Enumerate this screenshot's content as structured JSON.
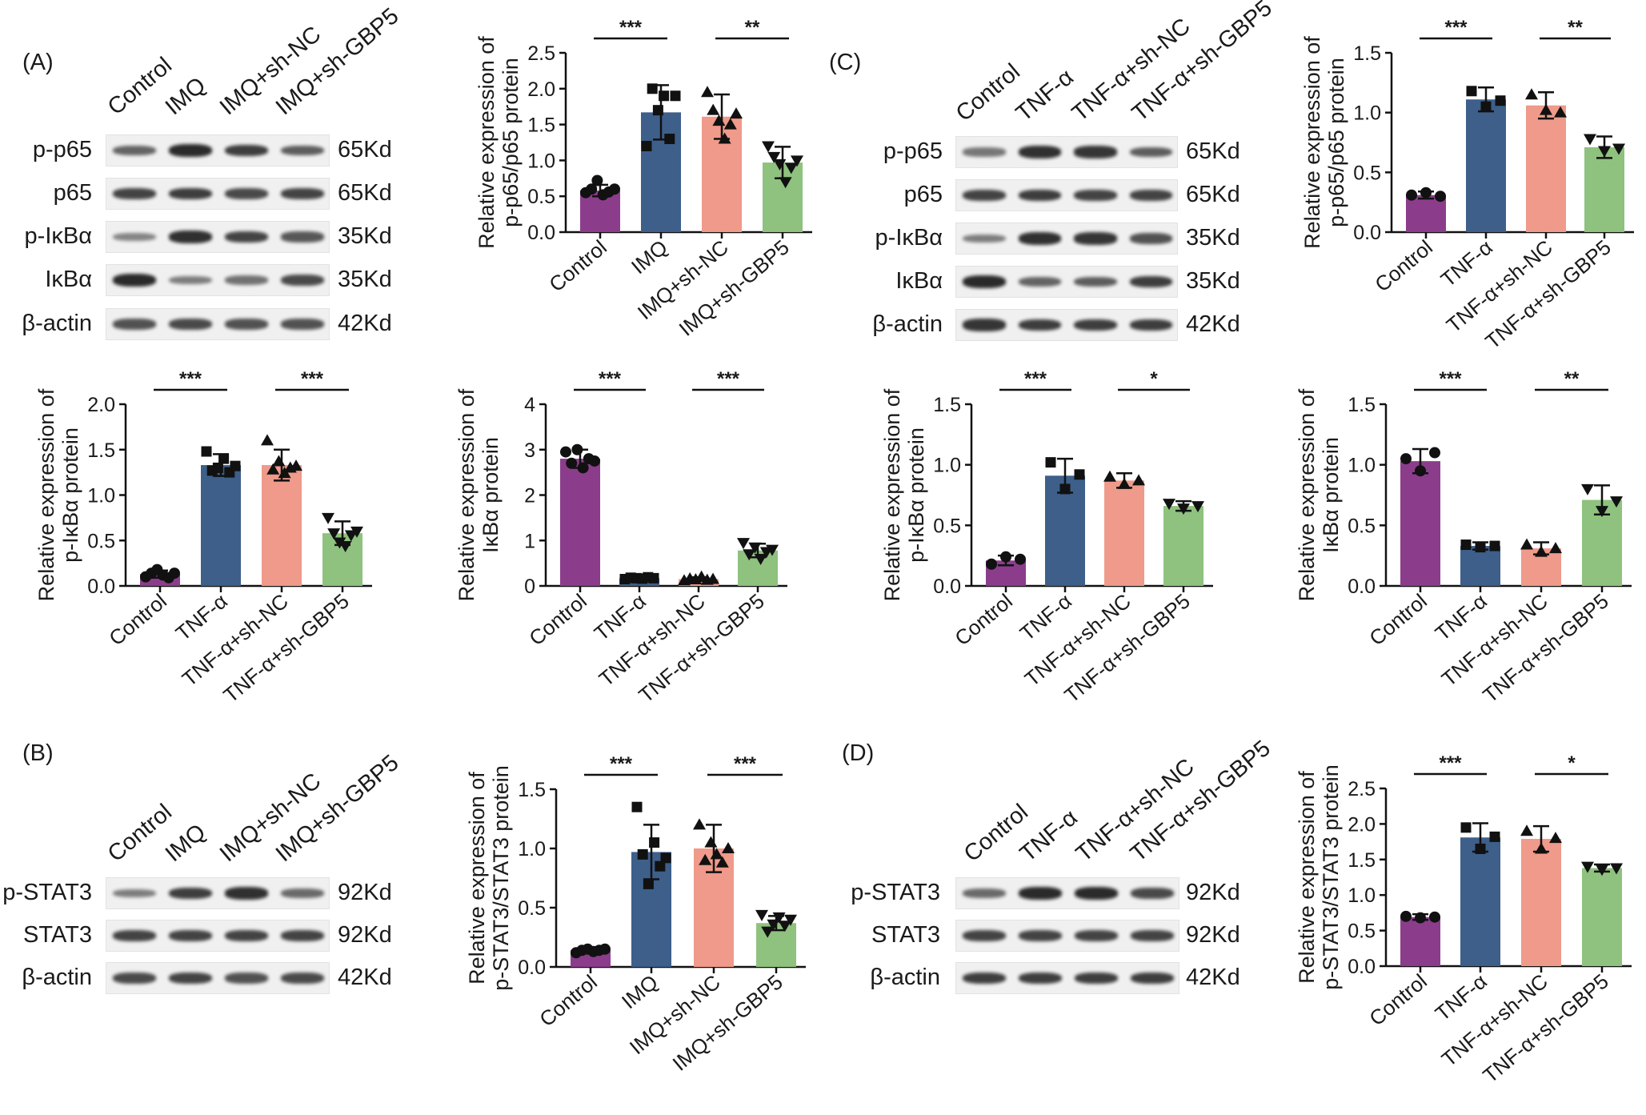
{
  "panel_labels": {
    "A": "(A)",
    "B": "(B)",
    "C": "(C)",
    "D": "(D)"
  },
  "colors": {
    "control": "#8b3d8b",
    "treat": "#3d5f8a",
    "shnc": "#ef9a8a",
    "shgbp5": "#8ec27e",
    "band": "#2a2a2a"
  },
  "blots": {
    "A": {
      "lanes": [
        "Control",
        "IMQ",
        "IMQ+sh-NC",
        "IMQ+sh-GBP5"
      ],
      "rows": [
        {
          "name": "p-p65",
          "kd": "65Kd",
          "intensity": [
            0.55,
            1.0,
            0.85,
            0.6
          ]
        },
        {
          "name": "p65",
          "kd": "65Kd",
          "intensity": [
            0.8,
            0.85,
            0.75,
            0.8
          ]
        },
        {
          "name": "p-IκBα",
          "kd": "35Kd",
          "intensity": [
            0.3,
            0.95,
            0.8,
            0.65
          ]
        },
        {
          "name": "IκBα",
          "kd": "35Kd",
          "intensity": [
            1.0,
            0.35,
            0.45,
            0.75
          ]
        },
        {
          "name": "β-actin",
          "kd": "42Kd",
          "intensity": [
            0.7,
            0.75,
            0.7,
            0.7
          ]
        }
      ]
    },
    "B": {
      "lanes": [
        "Control",
        "IMQ",
        "IMQ+sh-NC",
        "IMQ+sh-GBP5"
      ],
      "rows": [
        {
          "name": "p-STAT3",
          "kd": "92Kd",
          "intensity": [
            0.35,
            0.85,
            0.95,
            0.5
          ]
        },
        {
          "name": "STAT3",
          "kd": "92Kd",
          "intensity": [
            0.8,
            0.8,
            0.8,
            0.8
          ]
        },
        {
          "name": "β-actin",
          "kd": "42Kd",
          "intensity": [
            0.75,
            0.8,
            0.7,
            0.75
          ]
        }
      ]
    },
    "C": {
      "lanes": [
        "Control",
        "TNF-α",
        "TNF-α+sh-NC",
        "TNF-α+sh-GBP5"
      ],
      "rows": [
        {
          "name": "p-p65",
          "kd": "65Kd",
          "intensity": [
            0.4,
            0.95,
            0.9,
            0.6
          ]
        },
        {
          "name": "p65",
          "kd": "65Kd",
          "intensity": [
            0.8,
            0.85,
            0.8,
            0.8
          ]
        },
        {
          "name": "p-IκBα",
          "kd": "35Kd",
          "intensity": [
            0.35,
            0.95,
            0.9,
            0.7
          ]
        },
        {
          "name": "IκBα",
          "kd": "35Kd",
          "intensity": [
            1.0,
            0.55,
            0.6,
            0.85
          ]
        },
        {
          "name": "β-actin",
          "kd": "42Kd",
          "intensity": [
            0.9,
            0.85,
            0.85,
            0.85
          ]
        }
      ]
    },
    "D": {
      "lanes": [
        "Control",
        "TNF-α",
        "TNF-α+sh-NC",
        "TNF-α+sh-GBP5"
      ],
      "rows": [
        {
          "name": "p-STAT3",
          "kd": "92Kd",
          "intensity": [
            0.5,
            1.0,
            1.0,
            0.75
          ]
        },
        {
          "name": "STAT3",
          "kd": "92Kd",
          "intensity": [
            0.8,
            0.8,
            0.8,
            0.8
          ]
        },
        {
          "name": "β-actin",
          "kd": "42Kd",
          "intensity": [
            0.85,
            0.85,
            0.85,
            0.85
          ]
        }
      ]
    }
  },
  "chart_data": [
    {
      "id": "a-pp65",
      "type": "bar",
      "ylabel": [
        "Relative expression of",
        "p-p65/p65 protein"
      ],
      "categories": [
        "Control",
        "IMQ",
        "IMQ+sh-NC",
        "IMQ+sh-GBP5"
      ],
      "values": [
        0.58,
        1.67,
        1.61,
        0.97
      ],
      "errors": [
        0.08,
        0.38,
        0.31,
        0.22
      ],
      "points": [
        [
          0.55,
          0.6,
          0.72,
          0.52,
          0.56,
          0.6
        ],
        [
          1.2,
          2.0,
          1.7,
          1.9,
          1.3,
          1.9
        ],
        [
          1.95,
          1.7,
          1.55,
          1.3,
          1.5,
          1.65
        ],
        [
          1.2,
          1.05,
          0.95,
          0.7,
          0.9,
          1.0
        ]
      ],
      "ylim": [
        0,
        2.5
      ],
      "yticks": [
        "0.0",
        "0.5",
        "1.0",
        "1.5",
        "2.0",
        "2.5"
      ],
      "ytick_values": [
        0,
        0.5,
        1.0,
        1.5,
        2.0,
        2.5
      ],
      "significance": [
        {
          "pair": [
            0,
            1
          ],
          "label": "***"
        },
        {
          "pair": [
            2,
            3
          ],
          "label": "**"
        }
      ]
    },
    {
      "id": "a-pikba",
      "type": "bar",
      "ylabel": [
        "Relative expression of",
        "p-IκBα protein"
      ],
      "categories": [
        "Control",
        "TNF-α",
        "TNF-α+sh-NC",
        "TNF-α+sh-GBP5"
      ],
      "values": [
        0.13,
        1.33,
        1.33,
        0.58
      ],
      "errors": [
        0.04,
        0.12,
        0.17,
        0.13
      ],
      "points": [
        [
          0.1,
          0.14,
          0.18,
          0.12,
          0.09,
          0.14
        ],
        [
          1.48,
          1.27,
          1.3,
          1.4,
          1.25,
          1.32
        ],
        [
          1.6,
          1.28,
          1.37,
          1.24,
          1.3,
          1.32
        ],
        [
          0.75,
          0.58,
          0.48,
          0.44,
          0.56,
          0.6
        ]
      ],
      "ylim": [
        0,
        2.0
      ],
      "yticks": [
        "0.0",
        "0.5",
        "1.0",
        "1.5",
        "2.0"
      ],
      "ytick_values": [
        0,
        0.5,
        1.0,
        1.5,
        2.0
      ],
      "significance": [
        {
          "pair": [
            0,
            1
          ],
          "label": "***"
        },
        {
          "pair": [
            2,
            3
          ],
          "label": "***"
        }
      ]
    },
    {
      "id": "a-ikba",
      "type": "bar",
      "ylabel": [
        "Relative expression of",
        "IκBα protein"
      ],
      "categories": [
        "Control",
        "TNF-α",
        "TNF-α+sh-NC",
        "TNF-α+sh-GBP5"
      ],
      "values": [
        2.8,
        0.17,
        0.15,
        0.78
      ],
      "errors": [
        0.2,
        0.03,
        0.04,
        0.15
      ],
      "points": [
        [
          2.95,
          2.7,
          3.0,
          2.6,
          2.8,
          2.75
        ],
        [
          0.15,
          0.18,
          0.17,
          0.16,
          0.19,
          0.17
        ],
        [
          0.12,
          0.16,
          0.14,
          0.2,
          0.13,
          0.15
        ],
        [
          0.95,
          0.7,
          0.85,
          0.6,
          0.75,
          0.8
        ]
      ],
      "ylim": [
        0,
        4
      ],
      "yticks": [
        "0",
        "1",
        "2",
        "3",
        "4"
      ],
      "ytick_values": [
        0,
        1,
        2,
        3,
        4
      ],
      "significance": [
        {
          "pair": [
            0,
            1
          ],
          "label": "***"
        },
        {
          "pair": [
            2,
            3
          ],
          "label": "***"
        }
      ]
    },
    {
      "id": "b-pstat3",
      "type": "bar",
      "ylabel": [
        "Relative expression of",
        "p-STAT3/STAT3 protein"
      ],
      "categories": [
        "Control",
        "IMQ",
        "IMQ+sh-NC",
        "IMQ+sh-GBP5"
      ],
      "values": [
        0.14,
        0.97,
        1.0,
        0.37
      ],
      "errors": [
        0.02,
        0.23,
        0.2,
        0.06
      ],
      "points": [
        [
          0.12,
          0.14,
          0.15,
          0.13,
          0.14,
          0.15
        ],
        [
          1.35,
          0.95,
          0.7,
          1.05,
          0.85,
          0.92
        ],
        [
          1.2,
          0.9,
          1.05,
          0.95,
          0.88,
          1.0
        ],
        [
          0.44,
          0.3,
          0.36,
          0.42,
          0.35,
          0.4
        ]
      ],
      "ylim": [
        0,
        1.5
      ],
      "yticks": [
        "0.0",
        "0.5",
        "1.0",
        "1.5"
      ],
      "ytick_values": [
        0,
        0.5,
        1.0,
        1.5
      ],
      "significance": [
        {
          "pair": [
            0,
            1
          ],
          "label": "***"
        },
        {
          "pair": [
            2,
            3
          ],
          "label": "***"
        }
      ]
    },
    {
      "id": "c-pp65",
      "type": "bar",
      "ylabel": [
        "Relative expression of",
        "p-p65/p65 protein"
      ],
      "categories": [
        "Control",
        "TNF-α",
        "TNF-α+sh-NC",
        "TNF-α+sh-GBP5"
      ],
      "values": [
        0.31,
        1.11,
        1.06,
        0.71
      ],
      "errors": [
        0.03,
        0.1,
        0.11,
        0.09
      ],
      "points": [
        [
          0.31,
          0.33,
          0.3
        ],
        [
          1.18,
          1.05,
          1.1
        ],
        [
          1.15,
          1.02,
          1.0
        ],
        [
          0.78,
          0.68,
          0.7
        ]
      ],
      "ylim": [
        0,
        1.5
      ],
      "yticks": [
        "0.0",
        "0.5",
        "1.0",
        "1.5"
      ],
      "ytick_values": [
        0,
        0.5,
        1.0,
        1.5
      ],
      "significance": [
        {
          "pair": [
            0,
            1
          ],
          "label": "***"
        },
        {
          "pair": [
            2,
            3
          ],
          "label": "**"
        }
      ]
    },
    {
      "id": "c-pikba",
      "type": "bar",
      "ylabel": [
        "Relative expression of",
        "p-IκBα protein"
      ],
      "categories": [
        "Control",
        "TNF-α",
        "TNF-α+sh-NC",
        "TNF-α+sh-GBP5"
      ],
      "values": [
        0.21,
        0.91,
        0.87,
        0.66
      ],
      "errors": [
        0.04,
        0.14,
        0.06,
        0.04
      ],
      "points": [
        [
          0.18,
          0.24,
          0.22
        ],
        [
          1.02,
          0.8,
          0.92
        ],
        [
          0.9,
          0.84,
          0.87
        ],
        [
          0.68,
          0.64,
          0.66
        ]
      ],
      "ylim": [
        0,
        1.5
      ],
      "yticks": [
        "0.0",
        "0.5",
        "1.0",
        "1.5"
      ],
      "ytick_values": [
        0,
        0.5,
        1.0,
        1.5
      ],
      "significance": [
        {
          "pair": [
            0,
            1
          ],
          "label": "***"
        },
        {
          "pair": [
            2,
            3
          ],
          "label": "*"
        }
      ]
    },
    {
      "id": "c-ikba",
      "type": "bar",
      "ylabel": [
        "Relative expression of",
        "IκBα protein"
      ],
      "categories": [
        "Control",
        "TNF-α",
        "TNF-α+sh-NC",
        "TNF-α+sh-GBP5"
      ],
      "values": [
        1.03,
        0.33,
        0.31,
        0.71
      ],
      "errors": [
        0.1,
        0.03,
        0.05,
        0.12
      ],
      "points": [
        [
          1.05,
          0.95,
          1.1
        ],
        [
          0.34,
          0.32,
          0.33
        ],
        [
          0.34,
          0.28,
          0.31
        ],
        [
          0.8,
          0.62,
          0.7
        ]
      ],
      "ylim": [
        0,
        1.5
      ],
      "yticks": [
        "0.0",
        "0.5",
        "1.0",
        "1.5"
      ],
      "ytick_values": [
        0,
        0.5,
        1.0,
        1.5
      ],
      "significance": [
        {
          "pair": [
            0,
            1
          ],
          "label": "***"
        },
        {
          "pair": [
            2,
            3
          ],
          "label": "**"
        }
      ]
    },
    {
      "id": "d-pstat3",
      "type": "bar",
      "ylabel": [
        "Relative expression of",
        "p-STAT3/STAT3 protein"
      ],
      "categories": [
        "Control",
        "TNF-α",
        "TNF-α+sh-NC",
        "TNF-α+sh-GBP5"
      ],
      "values": [
        0.69,
        1.81,
        1.79,
        1.38
      ],
      "errors": [
        0.04,
        0.2,
        0.18,
        0.05
      ],
      "points": [
        [
          0.7,
          0.68,
          0.69
        ],
        [
          1.95,
          1.65,
          1.82
        ],
        [
          1.9,
          1.65,
          1.8
        ],
        [
          1.4,
          1.36,
          1.38
        ]
      ],
      "ylim": [
        0,
        2.5
      ],
      "yticks": [
        "0.0",
        "0.5",
        "1.0",
        "1.5",
        "2.0",
        "2.5"
      ],
      "ytick_values": [
        0,
        0.5,
        1.0,
        1.5,
        2.0,
        2.5
      ],
      "significance": [
        {
          "pair": [
            0,
            1
          ],
          "label": "***"
        },
        {
          "pair": [
            2,
            3
          ],
          "label": "*"
        }
      ]
    }
  ]
}
